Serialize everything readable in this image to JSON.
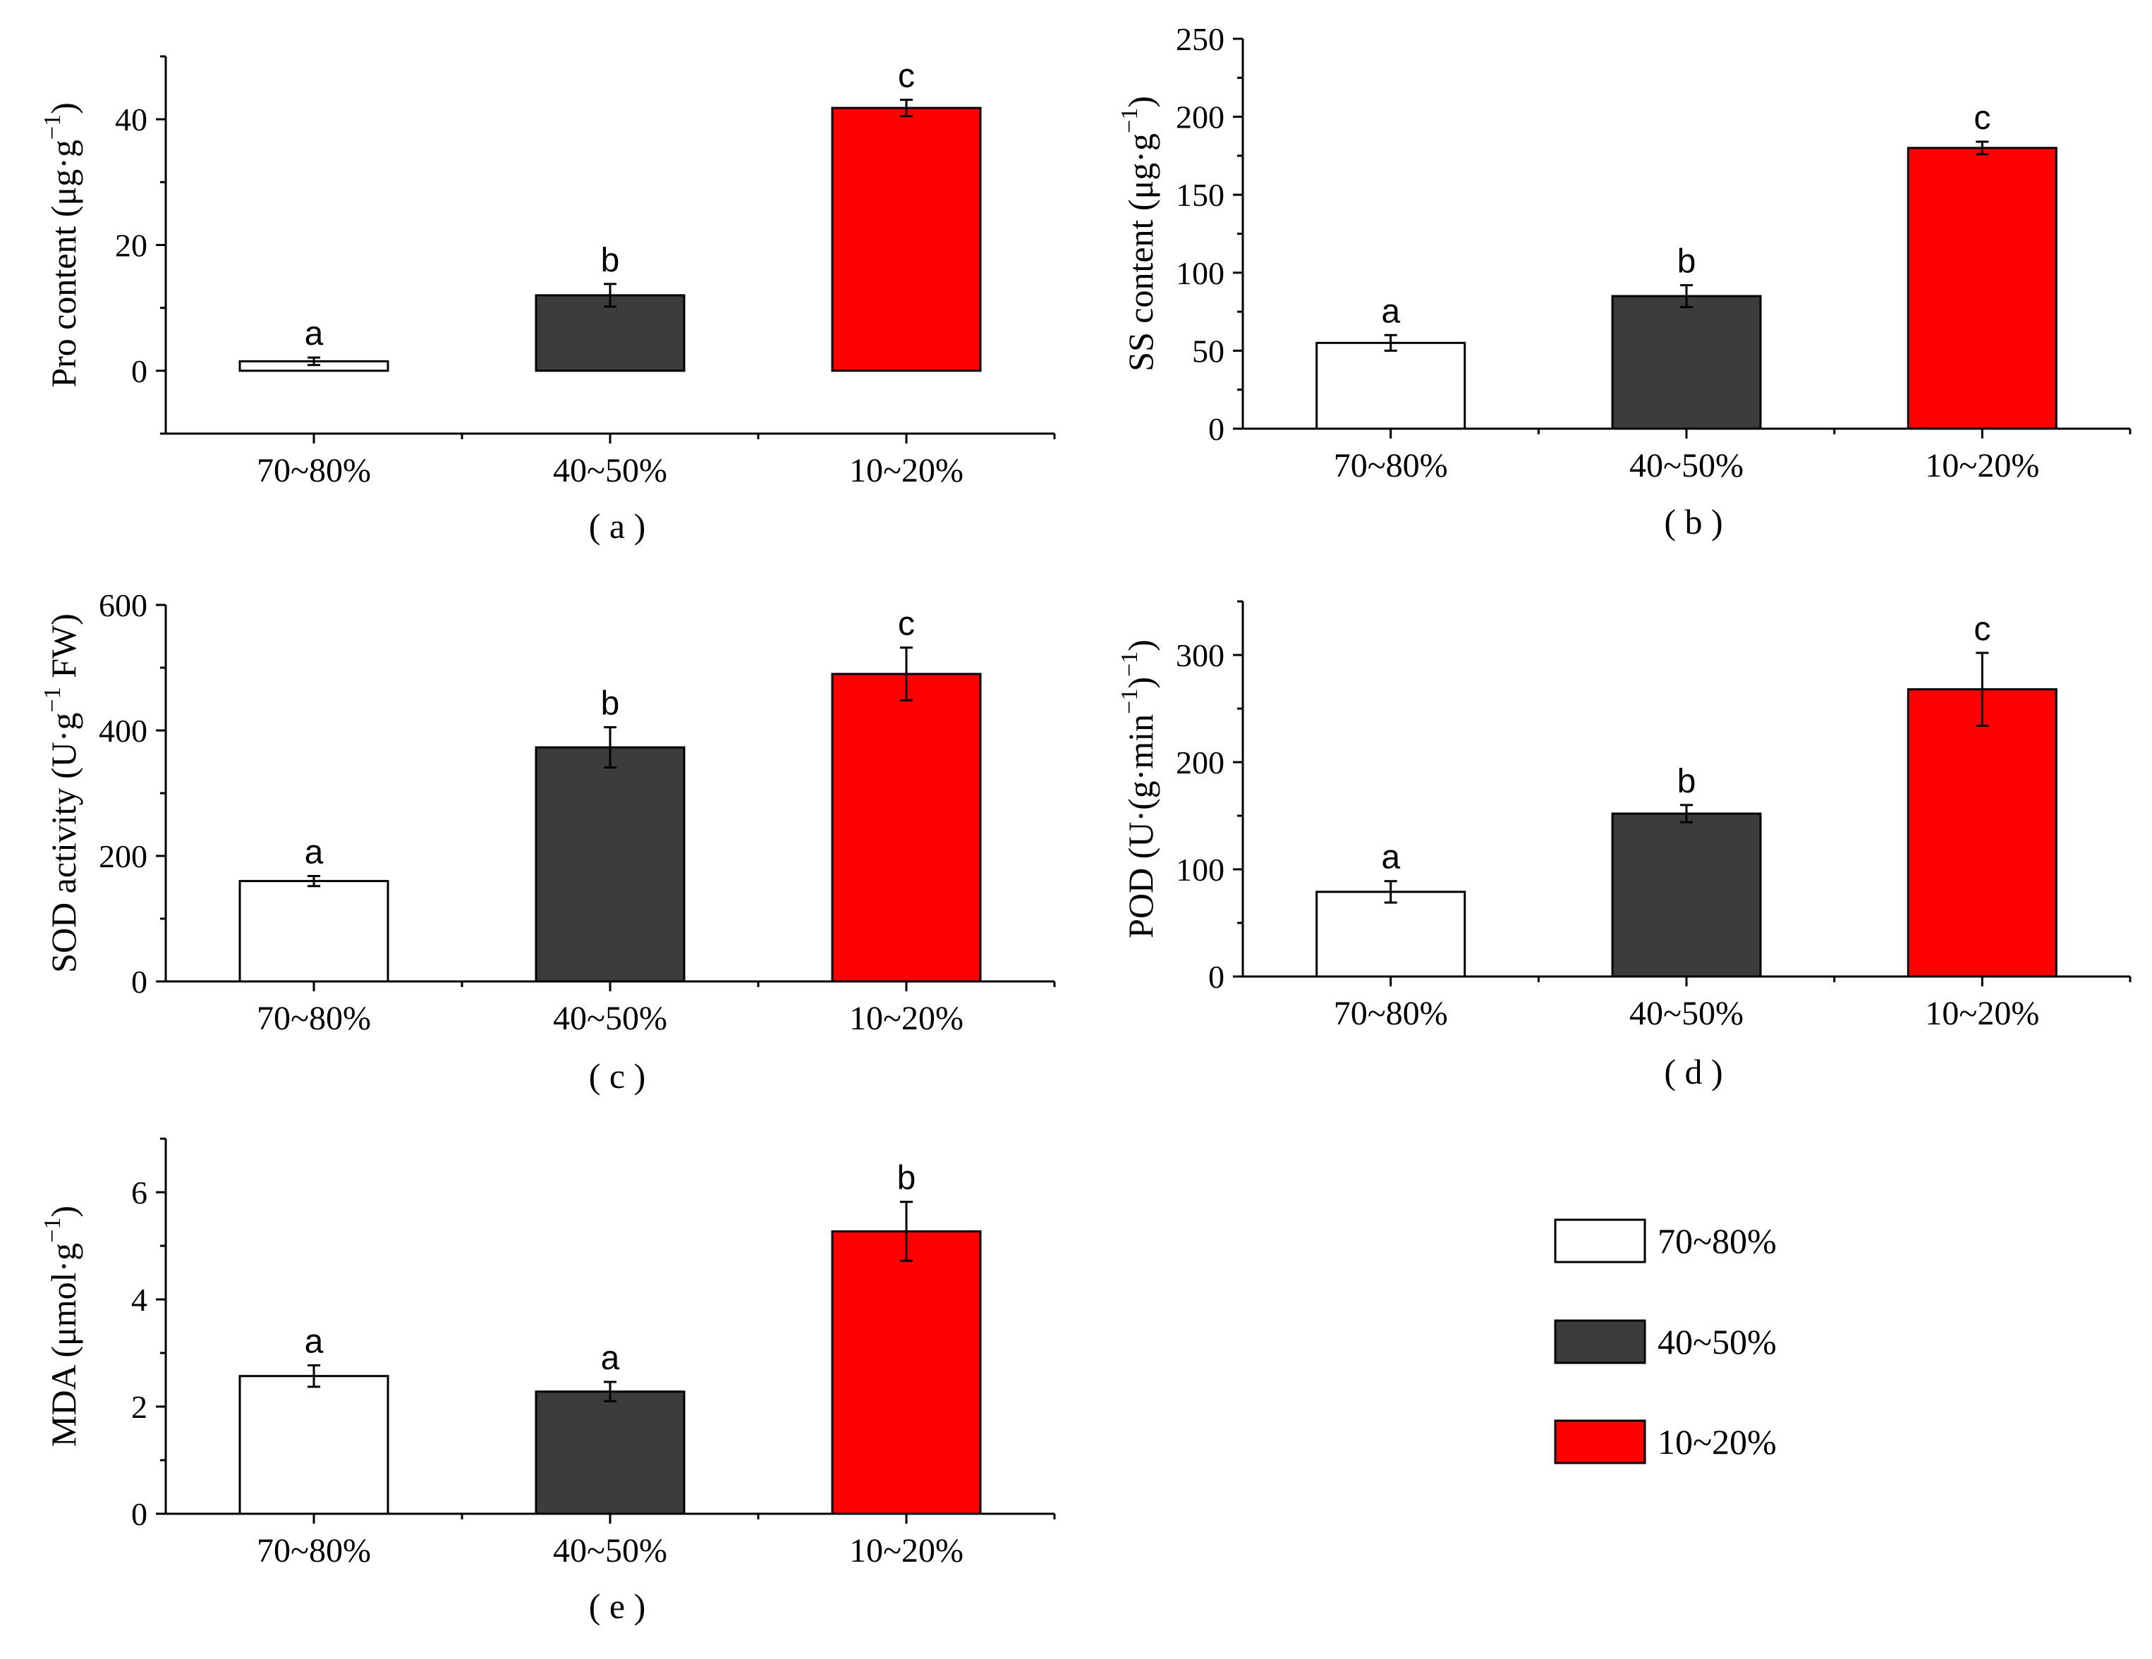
{
  "chart_data": [
    {
      "id": "a",
      "type": "bar",
      "panel_label": "( a )",
      "categories": [
        "70~80%",
        "40~50%",
        "10~20%"
      ],
      "values": [
        1.5,
        12,
        41.8
      ],
      "errors": [
        0.6,
        1.8,
        1.3
      ],
      "letters": [
        "a",
        "b",
        "c"
      ],
      "ylabel": "Pro content (μg·g",
      "ylabel_sup": "−1",
      "ylabel_suffix": ")",
      "ylim": [
        -10,
        50
      ],
      "yticks": [
        0,
        20,
        40
      ],
      "ytick_labels": [
        "0",
        "20",
        "40"
      ]
    },
    {
      "id": "b",
      "type": "bar",
      "panel_label": "( b )",
      "categories": [
        "70~80%",
        "40~50%",
        "10~20%"
      ],
      "values": [
        55,
        85,
        180
      ],
      "errors": [
        5,
        7,
        4
      ],
      "letters": [
        "a",
        "b",
        "c"
      ],
      "ylabel": "SS content (μg·g",
      "ylabel_sup": "−1",
      "ylabel_suffix": ")",
      "ylim": [
        0,
        250
      ],
      "yticks": [
        0,
        50,
        100,
        150,
        200,
        250
      ],
      "ytick_labels": [
        "0",
        "50",
        "100",
        "150",
        "200",
        "250"
      ]
    },
    {
      "id": "c",
      "type": "bar",
      "panel_label": "( c )",
      "categories": [
        "70~80%",
        "40~50%",
        "10~20%"
      ],
      "values": [
        160,
        373,
        490
      ],
      "errors": [
        8,
        32,
        42
      ],
      "letters": [
        "a",
        "b",
        "c"
      ],
      "ylabel": "SOD activity (U·g",
      "ylabel_sup": "−1",
      "ylabel_suffix": " FW)",
      "ylim": [
        0,
        600
      ],
      "yticks": [
        0,
        200,
        400,
        600
      ],
      "ytick_labels": [
        "0",
        "200",
        "400",
        "600"
      ]
    },
    {
      "id": "d",
      "type": "bar",
      "panel_label": "( d )",
      "categories": [
        "70~80%",
        "40~50%",
        "10~20%"
      ],
      "values": [
        79,
        152,
        268
      ],
      "errors": [
        10,
        8,
        34
      ],
      "letters": [
        "a",
        "b",
        "c"
      ],
      "ylabel": "POD (U·(g·min",
      "ylabel_sup": "−1",
      "ylabel_suffix": ")",
      "ylabel_sup2": "−1",
      "ylabel_suffix2": ")",
      "ylim": [
        0,
        350
      ],
      "yticks": [
        0,
        100,
        200,
        300
      ],
      "ytick_labels": [
        "0",
        "100",
        "200",
        "300"
      ]
    },
    {
      "id": "e",
      "type": "bar",
      "panel_label": "( e )",
      "categories": [
        "70~80%",
        "40~50%",
        "10~20%"
      ],
      "values": [
        2.57,
        2.28,
        5.27
      ],
      "errors": [
        0.2,
        0.18,
        0.55
      ],
      "letters": [
        "a",
        "a",
        "b"
      ],
      "ylabel": "MDA (μmol·g",
      "ylabel_sup": "−1",
      "ylabel_suffix": ")",
      "ylim": [
        0,
        7
      ],
      "yticks": [
        0,
        2,
        4,
        6
      ],
      "ytick_labels": [
        "0",
        "2",
        "4",
        "6"
      ]
    }
  ],
  "legend": {
    "entries": [
      {
        "label": "70~80%",
        "color": "#ffffff"
      },
      {
        "label": "40~50%",
        "color": "#3c3c3c"
      },
      {
        "label": "10~20%",
        "color": "#ff0000"
      }
    ]
  },
  "colors": {
    "series": [
      "#ffffff",
      "#3c3c3c",
      "#ff0000"
    ],
    "outline": "#000000"
  }
}
